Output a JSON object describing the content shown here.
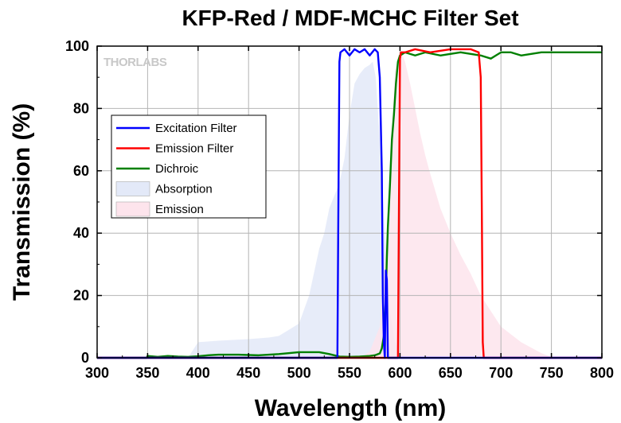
{
  "chart_data": {
    "type": "line",
    "title": "KFP-Red / MDF-MCHC Filter Set",
    "xlabel": "Wavelength (nm)",
    "ylabel": "Transmission (%)",
    "xlim": [
      300,
      800
    ],
    "ylim": [
      0,
      100
    ],
    "xticks": [
      "300",
      "350",
      "400",
      "450",
      "500",
      "550",
      "600",
      "650",
      "700",
      "750",
      "800"
    ],
    "yticks": [
      "0",
      "20",
      "40",
      "60",
      "80",
      "100"
    ],
    "grid": true,
    "legend_position": "left",
    "logo": "THORLABS",
    "colors": {
      "excitation": "#0000ff",
      "emission_filter": "#ff0000",
      "dichroic": "#008000",
      "absorption_fill": "#e3e9f8",
      "emission_fill": "#fde4ec"
    },
    "series": [
      {
        "name": "Excitation Filter",
        "type": "line",
        "x": [
          300,
          538,
          539,
          540,
          541,
          545,
          550,
          555,
          560,
          565,
          570,
          575,
          578,
          580,
          582,
          583,
          584,
          585,
          586,
          587,
          588,
          800
        ],
        "y": [
          0,
          0,
          50,
          95,
          98,
          99,
          97,
          99,
          98,
          99,
          97,
          99,
          98,
          90,
          60,
          20,
          5,
          0,
          28,
          25,
          0,
          0
        ]
      },
      {
        "name": "Emission Filter",
        "type": "line",
        "x": [
          300,
          598,
          599,
          600,
          601,
          602,
          605,
          615,
          630,
          650,
          670,
          678,
          680,
          681,
          682,
          683,
          800
        ],
        "y": [
          0,
          0,
          50,
          96,
          98,
          98,
          98,
          99,
          98,
          99,
          99,
          98,
          90,
          50,
          5,
          0,
          0
        ]
      },
      {
        "name": "Dichroic",
        "type": "line",
        "x": [
          300,
          349,
          350,
          360,
          370,
          380,
          390,
          400,
          410,
          420,
          440,
          460,
          480,
          500,
          520,
          530,
          540,
          550,
          560,
          570,
          575,
          580,
          582,
          584,
          585,
          586,
          587,
          588,
          590,
          592,
          594,
          596,
          598,
          600,
          605,
          615,
          625,
          640,
          660,
          680,
          690,
          695,
          700,
          710,
          720,
          740,
          760,
          780,
          800
        ],
        "y": [
          0,
          0,
          0.6,
          0.3,
          0.6,
          0.4,
          0.3,
          0.5,
          0.8,
          1.0,
          1.0,
          0.8,
          1.2,
          1.8,
          1.8,
          1.2,
          0.4,
          0.3,
          0.4,
          0.6,
          0.8,
          1.4,
          3,
          7,
          12,
          20,
          32,
          42,
          55,
          70,
          78,
          88,
          95,
          97,
          98,
          97,
          98,
          97,
          98,
          97,
          96,
          97,
          98,
          98,
          97,
          98,
          98,
          98,
          98
        ]
      },
      {
        "name": "Absorption",
        "type": "area",
        "x": [
          390,
          400,
          420,
          450,
          470,
          480,
          490,
          500,
          510,
          520,
          525,
          530,
          535,
          540,
          545,
          550,
          555,
          560,
          565,
          570,
          573,
          576,
          580,
          585,
          590,
          595,
          600,
          605
        ],
        "y": [
          0,
          5,
          5.5,
          6,
          6.5,
          7,
          9,
          11,
          20,
          35,
          40,
          48,
          52,
          56,
          64,
          78,
          88,
          91,
          93,
          94,
          95,
          90,
          70,
          40,
          15,
          5,
          2,
          0
        ]
      },
      {
        "name": "Emission",
        "type": "area",
        "x": [
          560,
          570,
          580,
          585,
          590,
          595,
          600,
          605,
          610,
          615,
          620,
          625,
          630,
          640,
          650,
          660,
          670,
          680,
          690,
          700,
          720,
          740,
          752
        ],
        "y": [
          0,
          2,
          10,
          30,
          60,
          92,
          99,
          95,
          88,
          80,
          72,
          65,
          59,
          48,
          40,
          33,
          27,
          20,
          15,
          10,
          5,
          1.5,
          0
        ]
      }
    ]
  }
}
